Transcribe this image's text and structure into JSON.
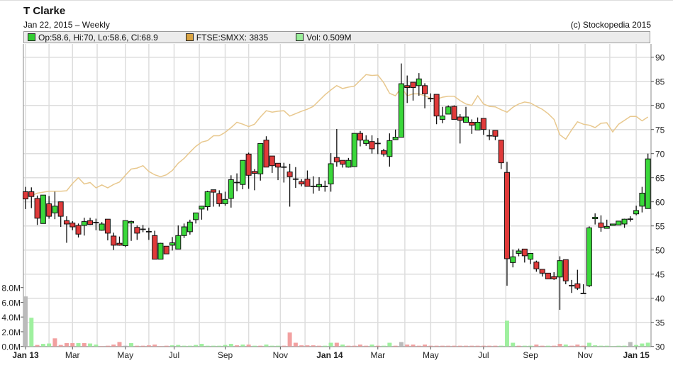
{
  "header": {
    "title": "T Clarke",
    "subtitle": "Jan 22, 2015 – Weekly",
    "copyright": "(c) Stockopedia 2015"
  },
  "legend": [
    {
      "label": "Op:58.6, Hi:70, Lo:58.6, Cl:68.9",
      "color": "#33cc33"
    },
    {
      "label": "FTSE:SMXX: 3835",
      "color": "#d9a443"
    },
    {
      "label": "Vol: 0.509M",
      "color": "#99ee99"
    }
  ],
  "colors": {
    "up": "#3ad83a",
    "down": "#e03a3a",
    "flat": "#aaaaaa",
    "vol_up": "#9ff09f",
    "vol_down": "#f2a0a0",
    "vol_flat": "#bbbbbb",
    "ftse_line": "#e8c88e",
    "grid": "#dddddd"
  },
  "chart_data": {
    "type": "candlestick",
    "interval": "weekly",
    "price_axis": {
      "position": "right",
      "range": [
        30,
        90
      ],
      "ticks": [
        "30",
        "35",
        "40",
        "45",
        "50",
        "55",
        "60",
        "65",
        "70",
        "75",
        "80",
        "85",
        "90"
      ]
    },
    "volume_axis": {
      "position": "left",
      "ticks": [
        "0.0M",
        "2.0M",
        "4.0M",
        "6.0M",
        "8.0M"
      ]
    },
    "x_ticks": [
      {
        "label": "Jan 13",
        "bold": true
      },
      {
        "label": "Mar"
      },
      {
        "label": "May"
      },
      {
        "label": "Jul"
      },
      {
        "label": "Sep"
      },
      {
        "label": "Nov"
      },
      {
        "label": "Jan 14",
        "bold": true
      },
      {
        "label": "Mar"
      },
      {
        "label": "May"
      },
      {
        "label": "Jul"
      },
      {
        "label": "Sep"
      },
      {
        "label": "Nov"
      },
      {
        "label": "Jan 15",
        "bold": true
      }
    ],
    "grid": true,
    "ohlc": [
      [
        62.1,
        63.1,
        58.5,
        60.6
      ],
      [
        62.1,
        63.0,
        58.7,
        61.1
      ],
      [
        60.7,
        61.3,
        55.2,
        56.6
      ],
      [
        55.5,
        61.4,
        55.5,
        61.4
      ],
      [
        59.6,
        61.2,
        56.5,
        57.0
      ],
      [
        57.7,
        62.1,
        56.4,
        59.1
      ],
      [
        60.0,
        60.0,
        54.8,
        57.0
      ],
      [
        56.1,
        57.0,
        51.5,
        55.4
      ],
      [
        55.6,
        56.0,
        54.1,
        54.8
      ],
      [
        55.1,
        55.5,
        52.6,
        53.3
      ],
      [
        55.1,
        56.7,
        53.0,
        55.9
      ],
      [
        56.1,
        56.7,
        55.2,
        55.3
      ],
      [
        55.7,
        56.5,
        54.1,
        55.7
      ],
      [
        54.1,
        55.8,
        54.0,
        55.4
      ],
      [
        56.4,
        56.4,
        52.0,
        53.5
      ],
      [
        52.9,
        53.6,
        50.0,
        51.0
      ],
      [
        51.4,
        52.8,
        50.9,
        51.0
      ],
      [
        50.9,
        56.1,
        50.6,
        56.1
      ],
      [
        55.6,
        56.1,
        51.9,
        55.9
      ],
      [
        54.7,
        55.1,
        52.1,
        53.5
      ],
      [
        54.3,
        55.2,
        53.7,
        54.3
      ],
      [
        53.8,
        54.6,
        52.1,
        53.8
      ],
      [
        53.0,
        54.0,
        48.1,
        48.1
      ],
      [
        48.1,
        51.5,
        48.1,
        51.4
      ],
      [
        50.8,
        50.8,
        49.2,
        49.2
      ],
      [
        51.0,
        52.7,
        49.9,
        51.5
      ],
      [
        50.2,
        55.1,
        50.2,
        53.0
      ],
      [
        53.0,
        55.5,
        52.5,
        54.8
      ],
      [
        53.8,
        56.3,
        53.2,
        55.8
      ],
      [
        56.3,
        57.7,
        55.5,
        57.7
      ],
      [
        58.5,
        59.1,
        56.3,
        59.1
      ],
      [
        59.0,
        62.3,
        58.2,
        62.1
      ],
      [
        62.5,
        62.5,
        59.0,
        62.0
      ],
      [
        61.7,
        62.4,
        59.0,
        59.6
      ],
      [
        59.6,
        62.1,
        59.2,
        60.5
      ],
      [
        60.7,
        65.5,
        58.8,
        64.6
      ],
      [
        64.0,
        65.9,
        62.2,
        64.0
      ],
      [
        63.6,
        68.6,
        62.6,
        68.6
      ],
      [
        69.9,
        70.2,
        62.7,
        65.5
      ],
      [
        66.3,
        66.8,
        62.4,
        65.9
      ],
      [
        65.8,
        72.1,
        64.4,
        72.1
      ],
      [
        72.8,
        73.6,
        67.2,
        67.2
      ],
      [
        69.5,
        69.5,
        66.0,
        67.5
      ],
      [
        68.0,
        68.0,
        64.5,
        67.2
      ],
      [
        67.2,
        68.1,
        64.0,
        67.2
      ],
      [
        66.2,
        67.9,
        59.0,
        65.2
      ],
      [
        64.7,
        67.2,
        62.9,
        64.7
      ],
      [
        64.2,
        64.7,
        63.2,
        63.7
      ],
      [
        64.7,
        66.5,
        63.2,
        63.2
      ],
      [
        63.2,
        65.3,
        61.7,
        63.2
      ],
      [
        63.1,
        65.1,
        62.3,
        63.6
      ],
      [
        63.2,
        64.4,
        62.1,
        63.2
      ],
      [
        63.7,
        70.1,
        62.1,
        67.9
      ],
      [
        69.2,
        75.1,
        67.3,
        68.3
      ],
      [
        68.6,
        68.6,
        67.1,
        67.8
      ],
      [
        67.2,
        69.1,
        67.1,
        68.6
      ],
      [
        67.3,
        74.2,
        67.3,
        74.2
      ],
      [
        74.2,
        74.7,
        71.5,
        72.8
      ],
      [
        72.1,
        73.8,
        71.6,
        72.8
      ],
      [
        72.5,
        73.8,
        70.0,
        71.0
      ],
      [
        72.1,
        73.2,
        69.9,
        72.1
      ],
      [
        70.6,
        71.0,
        69.4,
        69.9
      ],
      [
        69.4,
        74.2,
        67.3,
        72.7
      ],
      [
        72.9,
        75.0,
        72.9,
        73.4
      ],
      [
        73.4,
        88.7,
        73.4,
        84.5
      ],
      [
        84.1,
        86.2,
        80.5,
        83.7
      ],
      [
        84.8,
        84.8,
        81.0,
        83.7
      ],
      [
        84.1,
        86.7,
        82.0,
        85.5
      ],
      [
        84.1,
        84.6,
        79.4,
        82.4
      ],
      [
        81.4,
        82.5,
        80.7,
        81.4
      ],
      [
        82.3,
        82.3,
        76.1,
        77.8
      ],
      [
        77.1,
        79.7,
        76.3,
        77.8
      ],
      [
        78.2,
        80.0,
        78.2,
        79.7
      ],
      [
        79.8,
        80.0,
        77.1,
        77.1
      ],
      [
        77.6,
        78.2,
        72.1,
        76.9
      ],
      [
        76.5,
        79.7,
        76.5,
        77.6
      ],
      [
        76.5,
        77.1,
        74.1,
        75.9
      ],
      [
        74.9,
        77.5,
        74.9,
        76.5
      ],
      [
        77.3,
        77.3,
        73.9,
        75.0
      ],
      [
        73.7,
        75.0,
        72.8,
        73.7
      ],
      [
        74.8,
        74.8,
        72.8,
        73.6
      ],
      [
        72.8,
        72.8,
        66.8,
        68.1
      ],
      [
        66.1,
        68.3,
        42.6,
        48.2
      ],
      [
        47.4,
        50.1,
        46.4,
        48.6
      ],
      [
        49.3,
        50.3,
        48.7,
        49.8
      ],
      [
        50.2,
        50.2,
        47.4,
        48.8
      ],
      [
        48.1,
        49.3,
        47.1,
        49.3
      ],
      [
        47.5,
        47.8,
        45.5,
        46.1
      ],
      [
        46.0,
        46.0,
        44.5,
        45.2
      ],
      [
        45.2,
        45.2,
        44.0,
        44.0
      ],
      [
        44.5,
        45.4,
        43.8,
        44.0
      ],
      [
        44.4,
        48.7,
        37.6,
        47.8
      ],
      [
        48.0,
        48.0,
        42.9,
        43.6
      ],
      [
        42.6,
        43.8,
        41.1,
        42.6
      ],
      [
        43.0,
        45.9,
        41.7,
        42.1
      ],
      [
        41.0,
        42.9,
        41.0,
        41.0
      ],
      [
        42.6,
        54.9,
        42.3,
        54.6
      ],
      [
        56.5,
        57.6,
        55.3,
        56.8
      ],
      [
        55.6,
        57.2,
        53.8,
        54.7
      ],
      [
        54.5,
        56.3,
        54.5,
        54.9
      ],
      [
        55.1,
        55.4,
        55.1,
        55.4
      ],
      [
        55.2,
        56.0,
        55.2,
        56.0
      ],
      [
        55.4,
        56.5,
        54.6,
        56.4
      ],
      [
        56.4,
        57.0,
        55.9,
        56.4
      ],
      [
        57.5,
        59.2,
        57.2,
        58.2
      ],
      [
        59.1,
        63.1,
        57.8,
        61.8
      ],
      [
        58.6,
        70.0,
        58.6,
        68.9
      ]
    ],
    "ftse_smxx_on_price_axis": [
      61.0,
      61.3,
      61.8,
      62.0,
      62.2,
      62.2,
      62.2,
      62.3,
      63.8,
      65.0,
      63.7,
      64.0,
      62.9,
      63.5,
      62.9,
      63.6,
      64.1,
      65.5,
      66.8,
      67.0,
      67.5,
      66.3,
      65.6,
      65.2,
      65.6,
      66.5,
      68.0,
      69.0,
      70.3,
      71.5,
      72.4,
      72.7,
      73.7,
      73.7,
      74.4,
      75.4,
      76.5,
      76.1,
      75.6,
      76.1,
      77.6,
      78.9,
      78.6,
      78.8,
      78.9,
      77.8,
      78.3,
      78.8,
      79.2,
      79.8,
      81.0,
      82.2,
      83.2,
      84.1,
      83.5,
      83.8,
      84.0,
      85.2,
      86.4,
      86.2,
      86.3,
      84.7,
      82.5,
      82.0,
      83.7,
      82.0,
      82.4,
      82.4,
      82.0,
      81.5,
      81.3,
      81.7,
      81.9,
      81.9,
      81.0,
      80.3,
      80.0,
      82.0,
      80.3,
      79.8,
      79.7,
      79.1,
      78.6,
      79.6,
      80.3,
      80.7,
      80.5,
      79.8,
      79.2,
      78.3,
      77.1,
      73.9,
      73.0,
      74.9,
      76.6,
      76.1,
      75.9,
      75.4,
      76.3,
      76.4,
      74.5,
      76.1,
      76.9,
      77.7,
      77.7,
      76.8,
      77.6
    ],
    "volume_m": [
      6.8,
      3.9,
      0.2,
      0.35,
      0.4,
      1.1,
      0.2,
      0.45,
      0.45,
      0.45,
      0.45,
      0.4,
      0.25,
      0.05,
      0.1,
      0.25,
      0.6,
      0.1,
      0.45,
      0.1,
      0.1,
      0.15,
      0.25,
      0.05,
      0.1,
      0.15,
      0.2,
      0.1,
      0.1,
      0.2,
      0.35,
      0.1,
      0.1,
      0.1,
      0.2,
      0.35,
      0.15,
      0.25,
      0.25,
      0.1,
      0.1,
      0.25,
      0.1,
      0.1,
      0.1,
      1.9,
      0.5,
      0.15,
      0.15,
      0.15,
      0.1,
      0.1,
      0.5,
      0.5,
      0.25,
      0.1,
      0.1,
      0.25,
      0.1,
      0.25,
      0.1,
      0.1,
      0.5,
      0.1,
      0.6,
      0.25,
      0.25,
      0.1,
      0.25,
      0.1,
      0.1,
      0.1,
      0.1,
      0.1,
      0.1,
      0.1,
      0.1,
      0.1,
      0.1,
      0.1,
      0.1,
      0.1,
      3.5,
      0.5,
      0.1,
      0.1,
      0.1,
      0.25,
      0.1,
      0.1,
      0.1,
      0.35,
      0.25,
      0.1,
      0.25,
      0.1,
      0.5,
      0.15,
      0.1,
      0.1,
      0.05,
      0.1,
      0.1,
      0.6,
      0.2,
      0.4,
      0.509
    ],
    "volume_dir": "fuduudddduduuddddfudddddduuuuuuuuuuudududuuuddddddduududddduduudfdddddddddddddddduuuduuddudduddduuuuuuufuuu"
  }
}
